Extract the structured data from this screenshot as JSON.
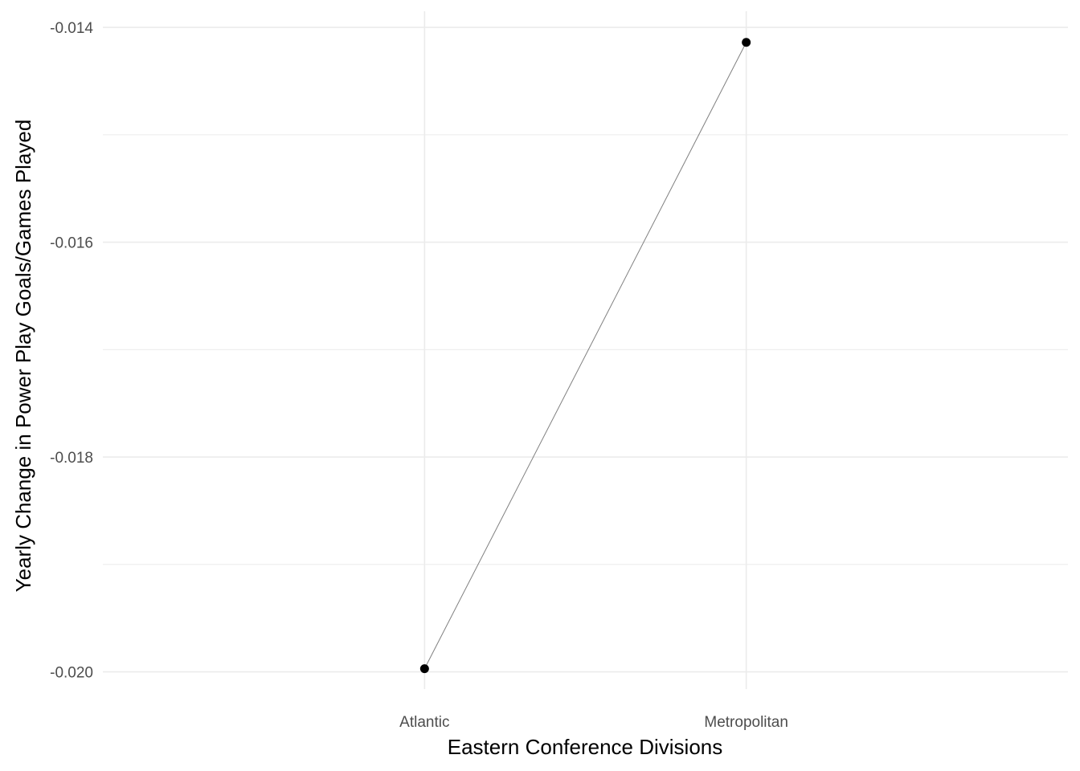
{
  "chart_data": {
    "type": "line",
    "title": "",
    "xlabel": "Eastern Conference Divisions",
    "ylabel": "Yearly Change in Power Play Goals/Games Played",
    "categories": [
      "Atlantic",
      "Metropolitan"
    ],
    "series": [
      {
        "values": [
          -0.01997,
          -0.01414
        ],
        "line_color": "#808080",
        "point_color": "#000000"
      }
    ],
    "ylim": [
      -0.02016,
      -0.01385
    ],
    "yticks": [
      {
        "value": -0.014,
        "label": "-0.014"
      },
      {
        "value": -0.016,
        "label": "-0.016"
      },
      {
        "value": -0.018,
        "label": "-0.018"
      },
      {
        "value": -0.02,
        "label": "-0.020"
      }
    ],
    "y_minor_gridlines": [
      -0.015,
      -0.017,
      -0.019
    ],
    "grid": true,
    "grid_color": "#ebebeb",
    "legend": "none"
  }
}
